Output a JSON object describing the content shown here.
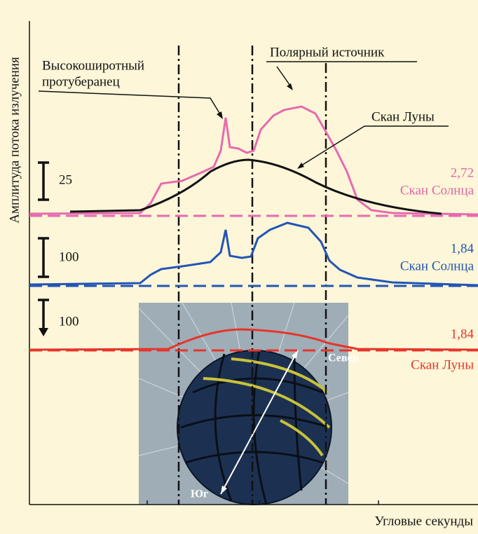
{
  "labels": {
    "y_axis": "Амплитуда потока излучения",
    "x_axis": "Угловые секунды",
    "prominence_line1": "Высокоширотный",
    "prominence_line2": "протуберанец",
    "polar_source": "Полярный источник",
    "moon_scan_callout": "Скан Луны"
  },
  "traces": [
    {
      "scale": "25",
      "amplitude": "2,72",
      "name": "Скан Солнца"
    },
    {
      "scale": "100",
      "amplitude": "1,84",
      "name": "Скан Солнца"
    },
    {
      "scale": "100",
      "amplitude": "1,84",
      "name": "Скан Луны"
    }
  ],
  "inset": {
    "north": "Север",
    "south": "Юг"
  }
}
